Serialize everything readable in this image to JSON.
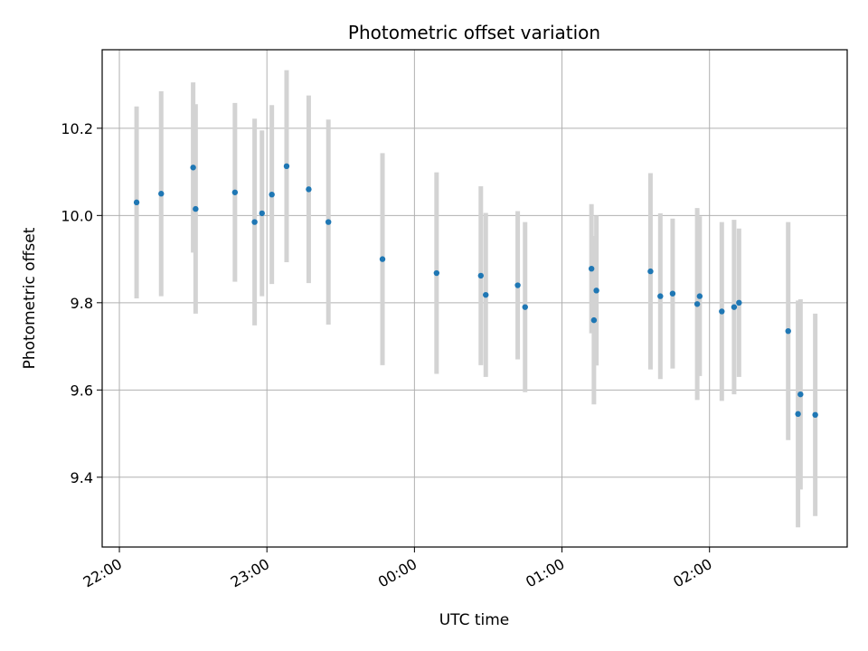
{
  "chart_data": {
    "type": "scatter",
    "title": "Photometric offset variation",
    "xlabel": "UTC time",
    "ylabel": "Photometric offset",
    "x_axis_kind": "time",
    "x_ticks": [
      "22:00",
      "23:00",
      "00:00",
      "01:00",
      "02:00"
    ],
    "xlim": [
      "21:53",
      "02:56"
    ],
    "ylim": [
      9.24,
      10.38
    ],
    "y_ticks": [
      9.4,
      9.6,
      9.8,
      10.0,
      10.2
    ],
    "y_tick_labels": [
      "9.4",
      "9.6",
      "9.8",
      "10.0",
      "10.2"
    ],
    "grid": true,
    "point_color": "#1f77b4",
    "errorbar_color": "#d3d3d3",
    "series": [
      {
        "points": [
          {
            "t": "22:07",
            "y": 10.03,
            "err": 0.22
          },
          {
            "t": "22:17",
            "y": 10.05,
            "err": 0.235
          },
          {
            "t": "22:30",
            "y": 10.11,
            "err": 0.195
          },
          {
            "t": "22:31",
            "y": 10.015,
            "err": 0.24
          },
          {
            "t": "22:47",
            "y": 10.053,
            "err": 0.205
          },
          {
            "t": "22:55",
            "y": 9.985,
            "err": 0.237
          },
          {
            "t": "22:58",
            "y": 10.005,
            "err": 0.19
          },
          {
            "t": "23:02",
            "y": 10.048,
            "err": 0.205
          },
          {
            "t": "23:08",
            "y": 10.113,
            "err": 0.22
          },
          {
            "t": "23:17",
            "y": 10.06,
            "err": 0.215
          },
          {
            "t": "23:25",
            "y": 9.985,
            "err": 0.235
          },
          {
            "t": "23:47",
            "y": 9.9,
            "err": 0.243
          },
          {
            "t": "00:09",
            "y": 9.868,
            "err": 0.231
          },
          {
            "t": "00:27",
            "y": 9.862,
            "err": 0.205
          },
          {
            "t": "00:29",
            "y": 9.818,
            "err": 0.188
          },
          {
            "t": "00:42",
            "y": 9.84,
            "err": 0.17
          },
          {
            "t": "00:45",
            "y": 9.79,
            "err": 0.195
          },
          {
            "t": "01:12",
            "y": 9.878,
            "err": 0.148
          },
          {
            "t": "01:13",
            "y": 9.76,
            "err": 0.193
          },
          {
            "t": "01:14",
            "y": 9.828,
            "err": 0.172
          },
          {
            "t": "01:36",
            "y": 9.872,
            "err": 0.225
          },
          {
            "t": "01:40",
            "y": 9.815,
            "err": 0.19
          },
          {
            "t": "01:45",
            "y": 9.821,
            "err": 0.172
          },
          {
            "t": "01:55",
            "y": 9.797,
            "err": 0.22
          },
          {
            "t": "01:56",
            "y": 9.815,
            "err": 0.183
          },
          {
            "t": "02:05",
            "y": 9.78,
            "err": 0.205
          },
          {
            "t": "02:10",
            "y": 9.79,
            "err": 0.2
          },
          {
            "t": "02:12",
            "y": 9.8,
            "err": 0.17
          },
          {
            "t": "02:32",
            "y": 9.735,
            "err": 0.25
          },
          {
            "t": "02:36",
            "y": 9.545,
            "err": 0.26
          },
          {
            "t": "02:37",
            "y": 9.59,
            "err": 0.218
          },
          {
            "t": "02:43",
            "y": 9.543,
            "err": 0.232
          }
        ]
      }
    ]
  }
}
